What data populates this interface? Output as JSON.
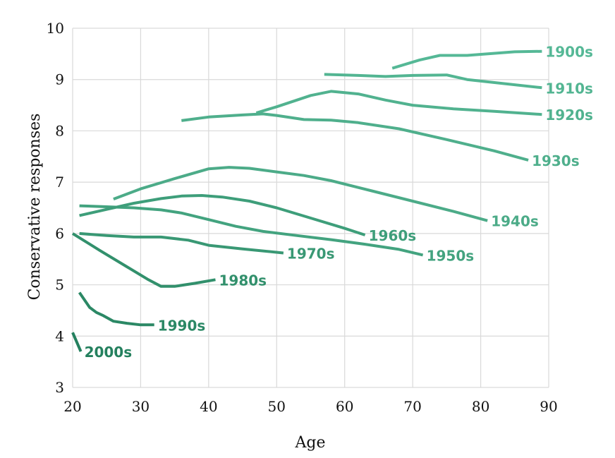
{
  "chart_data": {
    "type": "line",
    "title": "",
    "xlabel": "Age",
    "ylabel": "Conservative responses",
    "xlim": [
      20,
      90
    ],
    "ylim": [
      3,
      10
    ],
    "xticks": [
      20,
      30,
      40,
      50,
      60,
      70,
      80,
      90
    ],
    "yticks": [
      3,
      4,
      5,
      6,
      7,
      8,
      9,
      10
    ],
    "grid": true,
    "legend": "direct labels at line ends",
    "series": [
      {
        "name": "1900s",
        "color": "#55b896",
        "x": [
          67,
          71,
          74,
          78,
          85,
          89
        ],
        "y": [
          9.22,
          9.38,
          9.47,
          9.47,
          9.54,
          9.55
        ]
      },
      {
        "name": "1910s",
        "color": "#53b592",
        "x": [
          57,
          62,
          66,
          70,
          75,
          78,
          89
        ],
        "y": [
          9.1,
          9.08,
          9.06,
          9.08,
          9.09,
          9.0,
          8.84
        ]
      },
      {
        "name": "1920s",
        "color": "#51b28f",
        "x": [
          47,
          50,
          55,
          58,
          62,
          66,
          70,
          76,
          82,
          89
        ],
        "y": [
          8.35,
          8.47,
          8.69,
          8.77,
          8.72,
          8.6,
          8.5,
          8.43,
          8.38,
          8.32
        ]
      },
      {
        "name": "1930s",
        "color": "#4faf8c",
        "x": [
          36,
          40,
          45,
          48,
          50,
          54,
          58,
          62,
          68,
          75,
          82,
          87
        ],
        "y": [
          8.2,
          8.27,
          8.31,
          8.33,
          8.3,
          8.22,
          8.21,
          8.16,
          8.04,
          7.83,
          7.61,
          7.43
        ]
      },
      {
        "name": "1940s",
        "color": "#4cab88",
        "x": [
          26,
          30,
          35,
          40,
          43,
          46,
          50,
          54,
          58,
          64,
          70,
          76,
          81
        ],
        "y": [
          6.67,
          6.87,
          7.07,
          7.26,
          7.29,
          7.27,
          7.2,
          7.13,
          7.03,
          6.83,
          6.63,
          6.43,
          6.25
        ]
      },
      {
        "name": "1950s",
        "color": "#43a37f",
        "x": [
          21,
          25,
          29,
          33,
          36,
          40,
          44,
          48,
          53,
          58,
          63,
          68,
          71.5
        ],
        "y": [
          6.54,
          6.52,
          6.5,
          6.46,
          6.4,
          6.27,
          6.14,
          6.04,
          5.96,
          5.88,
          5.79,
          5.69,
          5.58
        ]
      },
      {
        "name": "1960s",
        "color": "#3e9e7a",
        "x": [
          21,
          25,
          29,
          33,
          36,
          39,
          42,
          46,
          50,
          55,
          60,
          63
        ],
        "y": [
          6.35,
          6.47,
          6.59,
          6.68,
          6.73,
          6.74,
          6.71,
          6.63,
          6.5,
          6.3,
          6.1,
          5.97
        ]
      },
      {
        "name": "1970s",
        "color": "#399874",
        "x": [
          21,
          25,
          29,
          33,
          37,
          40,
          45,
          51
        ],
        "y": [
          6.0,
          5.96,
          5.93,
          5.93,
          5.87,
          5.77,
          5.7,
          5.62
        ]
      },
      {
        "name": "1980s",
        "color": "#32906c",
        "x": [
          20,
          24,
          28,
          31,
          33,
          35,
          38,
          41
        ],
        "y": [
          6.0,
          5.67,
          5.35,
          5.11,
          4.97,
          4.97,
          5.03,
          5.1
        ]
      },
      {
        "name": "1990s",
        "color": "#2b8865",
        "x": [
          21,
          22.5,
          23.5,
          24.5,
          26,
          28,
          30,
          32
        ],
        "y": [
          4.85,
          4.56,
          4.46,
          4.4,
          4.29,
          4.25,
          4.22,
          4.22
        ]
      },
      {
        "name": "2000s",
        "color": "#24805e",
        "x": [
          20,
          21.2
        ],
        "y": [
          4.07,
          3.7
        ]
      }
    ]
  }
}
